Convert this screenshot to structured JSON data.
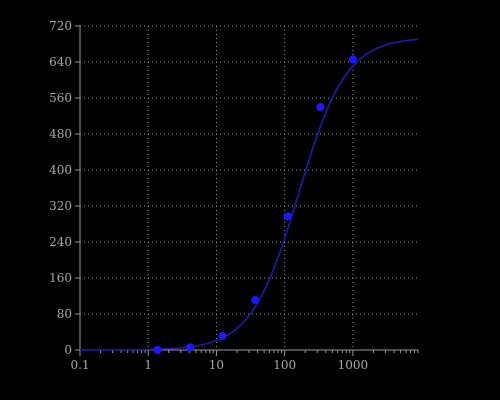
{
  "chart_data": {
    "type": "scatter",
    "title": "",
    "xlabel": "",
    "ylabel": "",
    "x_scale": "log",
    "xlim": [
      0.1,
      9000
    ],
    "ylim": [
      0,
      720
    ],
    "grid": true,
    "x_ticks": [
      0.1,
      1,
      10,
      100,
      1000
    ],
    "x_tick_labels": [
      "0.1",
      "1",
      "10",
      "100",
      "1000"
    ],
    "y_ticks": [
      0,
      80,
      160,
      240,
      320,
      400,
      480,
      560,
      640,
      720
    ],
    "y_tick_labels": [
      "0",
      "80",
      "160",
      "240",
      "320",
      "400",
      "480",
      "560",
      "640",
      "720"
    ],
    "series": [
      {
        "points": [
          {
            "x": 1.37,
            "y": 0
          },
          {
            "x": 4.1,
            "y": 6
          },
          {
            "x": 12.3,
            "y": 31
          },
          {
            "x": 37,
            "y": 111
          },
          {
            "x": 111,
            "y": 297
          },
          {
            "x": 333,
            "y": 540
          },
          {
            "x": 1000,
            "y": 646
          }
        ],
        "fit_curve": {
          "model": "4PL",
          "bottom": 0,
          "top": 695,
          "ec50": 160,
          "hill": 1.25,
          "x_range": [
            0.1,
            9000
          ]
        }
      }
    ],
    "colors": {
      "background": "#000000",
      "points": "#1a1aff",
      "curve": "#1c1ca8",
      "grid": "#9a9a9a",
      "tick_text": "#a8a8a8"
    }
  }
}
